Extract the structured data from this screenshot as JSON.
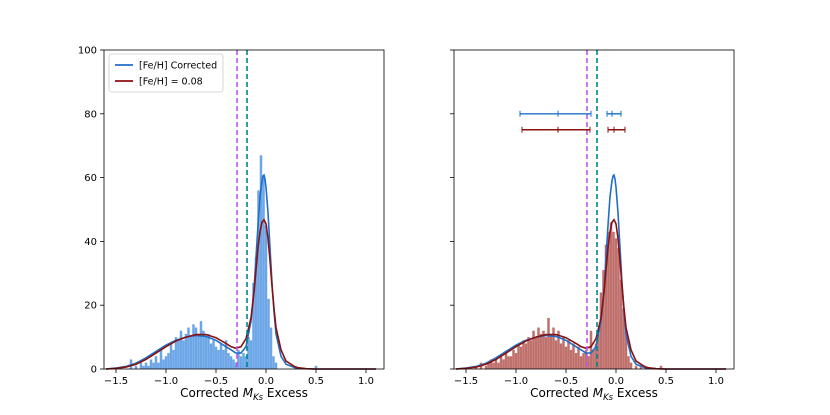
{
  "chart_data": [
    {
      "type": "histogram",
      "panel": "left",
      "xlim": [
        -1.62,
        1.18
      ],
      "ylim": [
        0,
        100
      ],
      "x_ticks": [
        -1.5,
        -1.0,
        -0.5,
        0.0,
        0.5,
        1.0
      ],
      "x_tick_labels": [
        "−1.5",
        "−1.0",
        "−0.5",
        "0.0",
        "0.5",
        "1.0"
      ],
      "y_ticks": [
        0,
        20,
        40,
        60,
        80,
        100
      ],
      "y_tick_labels": [
        "0",
        "20",
        "40",
        "60",
        "80",
        "100"
      ],
      "xlabel_prefix": "Corrected ",
      "xlabel_sub": "Ks",
      "xlabel_suffix": " Excess",
      "ylabel": "",
      "legend": {
        "placement": "upper-left",
        "entries": [
          {
            "label": "[Fe/H] Corrected",
            "color": "#1f6fc9"
          },
          {
            "label": "[Fe/H] = 0.08",
            "color": "#8b1010"
          }
        ]
      },
      "histogram_color": "#6ca6e6",
      "bin_width": 0.025,
      "bins": [
        [
          -1.35,
          3
        ],
        [
          -1.3,
          1
        ],
        [
          -1.25,
          2
        ],
        [
          -1.225,
          1
        ],
        [
          -1.2,
          2
        ],
        [
          -1.175,
          1
        ],
        [
          -1.15,
          3
        ],
        [
          -1.125,
          2
        ],
        [
          -1.1,
          4
        ],
        [
          -1.075,
          2
        ],
        [
          -1.05,
          6
        ],
        [
          -1.025,
          3
        ],
        [
          -1.0,
          4
        ],
        [
          -0.975,
          5
        ],
        [
          -0.95,
          8
        ],
        [
          -0.925,
          6
        ],
        [
          -0.9,
          10
        ],
        [
          -0.875,
          9
        ],
        [
          -0.85,
          12
        ],
        [
          -0.825,
          9
        ],
        [
          -0.8,
          11
        ],
        [
          -0.775,
          13
        ],
        [
          -0.75,
          10
        ],
        [
          -0.725,
          14
        ],
        [
          -0.7,
          13
        ],
        [
          -0.675,
          11
        ],
        [
          -0.65,
          15
        ],
        [
          -0.625,
          12
        ],
        [
          -0.6,
          10
        ],
        [
          -0.575,
          11
        ],
        [
          -0.55,
          8
        ],
        [
          -0.525,
          9
        ],
        [
          -0.5,
          7
        ],
        [
          -0.475,
          6
        ],
        [
          -0.45,
          8
        ],
        [
          -0.425,
          6
        ],
        [
          -0.4,
          9
        ],
        [
          -0.375,
          5
        ],
        [
          -0.35,
          4
        ],
        [
          -0.325,
          3
        ],
        [
          -0.3,
          2
        ],
        [
          -0.275,
          6
        ],
        [
          -0.25,
          4
        ],
        [
          -0.225,
          5
        ],
        [
          -0.2,
          4
        ],
        [
          -0.175,
          10
        ],
        [
          -0.15,
          9
        ],
        [
          -0.125,
          27
        ],
        [
          -0.1,
          35
        ],
        [
          -0.075,
          56
        ],
        [
          -0.05,
          67
        ],
        [
          -0.025,
          60
        ],
        [
          0.0,
          45
        ],
        [
          0.025,
          22
        ],
        [
          0.05,
          13
        ],
        [
          0.075,
          4
        ],
        [
          0.1,
          2
        ],
        [
          0.3,
          1
        ],
        [
          0.5,
          1
        ]
      ],
      "series": [
        {
          "name": "[Fe/H] Corrected",
          "color": "#1f6fc9",
          "x": [
            -1.6,
            -1.5,
            -1.4,
            -1.3,
            -1.2,
            -1.1,
            -1.0,
            -0.9,
            -0.8,
            -0.7,
            -0.6,
            -0.5,
            -0.4,
            -0.35,
            -0.3,
            -0.25,
            -0.2,
            -0.15,
            -0.12,
            -0.1,
            -0.08,
            -0.06,
            -0.04,
            -0.03,
            -0.02,
            -0.01,
            0.0,
            0.02,
            0.04,
            0.06,
            0.08,
            0.1,
            0.15,
            0.2,
            0.3,
            0.4,
            0.5,
            0.6,
            0.8,
            1.0,
            1.1
          ],
          "y": [
            0,
            0.3,
            0.8,
            1.8,
            3.5,
            5.5,
            7.5,
            9,
            10,
            10.5,
            10.2,
            9,
            7,
            6,
            5,
            5,
            7,
            15,
            25,
            35,
            45,
            54,
            59,
            60.5,
            60.8,
            59.5,
            57,
            49,
            38,
            27,
            18,
            11,
            4,
            1.5,
            0.3,
            0.1,
            0,
            0,
            0,
            0,
            0
          ]
        },
        {
          "name": "[Fe/H] = 0.08",
          "color": "#8b1010",
          "x": [
            -1.6,
            -1.5,
            -1.4,
            -1.3,
            -1.2,
            -1.1,
            -1.0,
            -0.9,
            -0.8,
            -0.7,
            -0.6,
            -0.5,
            -0.4,
            -0.35,
            -0.3,
            -0.25,
            -0.2,
            -0.15,
            -0.12,
            -0.1,
            -0.08,
            -0.06,
            -0.04,
            -0.02,
            0.0,
            0.02,
            0.04,
            0.06,
            0.08,
            0.1,
            0.15,
            0.2,
            0.3,
            0.4,
            0.5,
            0.6,
            0.8,
            1.0,
            1.1
          ],
          "y": [
            0,
            0.2,
            0.6,
            1.5,
            3,
            5,
            7,
            8.8,
            10,
            10.8,
            10.8,
            9.8,
            8,
            7,
            6.5,
            7,
            9.5,
            16,
            24,
            31,
            38,
            43,
            46,
            46.8,
            45.5,
            41,
            34,
            26,
            19,
            13,
            6,
            2.5,
            0.5,
            0.1,
            0,
            0,
            0,
            0,
            0
          ]
        }
      ],
      "vlines": [
        {
          "x": -0.29,
          "color": "#bf55ec",
          "style": "dashed"
        },
        {
          "x": -0.19,
          "color": "#00868b",
          "style": "dashed"
        }
      ]
    },
    {
      "type": "histogram",
      "panel": "right",
      "xlim": [
        -1.62,
        1.18
      ],
      "ylim": [
        0,
        100
      ],
      "x_ticks": [
        -1.5,
        -1.0,
        -0.5,
        0.0,
        0.5,
        1.0
      ],
      "x_tick_labels": [
        "−1.5",
        "−1.0",
        "−0.5",
        "0.0",
        "0.5",
        "1.0"
      ],
      "y_ticks": [
        0,
        20,
        40,
        60,
        80,
        100
      ],
      "xlabel_prefix": "Corrected ",
      "xlabel_sub": "Ks",
      "xlabel_suffix": " Excess",
      "ylabel": "",
      "histogram_color": "#c0706c",
      "bin_width": 0.025,
      "bins": [
        [
          -1.4,
          1
        ],
        [
          -1.35,
          2
        ],
        [
          -1.3,
          1
        ],
        [
          -1.275,
          2
        ],
        [
          -1.25,
          3
        ],
        [
          -1.225,
          2
        ],
        [
          -1.2,
          3
        ],
        [
          -1.175,
          2
        ],
        [
          -1.15,
          4
        ],
        [
          -1.125,
          3
        ],
        [
          -1.1,
          5
        ],
        [
          -1.075,
          4
        ],
        [
          -1.05,
          4
        ],
        [
          -1.025,
          6
        ],
        [
          -1.0,
          5
        ],
        [
          -0.975,
          8
        ],
        [
          -0.95,
          7
        ],
        [
          -0.925,
          9
        ],
        [
          -0.9,
          8
        ],
        [
          -0.875,
          10
        ],
        [
          -0.85,
          9
        ],
        [
          -0.825,
          12
        ],
        [
          -0.8,
          10
        ],
        [
          -0.775,
          13
        ],
        [
          -0.75,
          11
        ],
        [
          -0.725,
          12
        ],
        [
          -0.7,
          10
        ],
        [
          -0.675,
          16
        ],
        [
          -0.65,
          11
        ],
        [
          -0.625,
          13
        ],
        [
          -0.6,
          9
        ],
        [
          -0.575,
          12
        ],
        [
          -0.55,
          8
        ],
        [
          -0.525,
          10
        ],
        [
          -0.5,
          7
        ],
        [
          -0.475,
          9
        ],
        [
          -0.45,
          6
        ],
        [
          -0.425,
          8
        ],
        [
          -0.4,
          5
        ],
        [
          -0.375,
          7
        ],
        [
          -0.35,
          4
        ],
        [
          -0.325,
          5
        ],
        [
          -0.3,
          6
        ],
        [
          -0.275,
          4
        ],
        [
          -0.25,
          12
        ],
        [
          -0.225,
          6
        ],
        [
          -0.2,
          8
        ],
        [
          -0.175,
          11
        ],
        [
          -0.15,
          24
        ],
        [
          -0.125,
          31
        ],
        [
          -0.1,
          39
        ],
        [
          -0.075,
          43
        ],
        [
          -0.05,
          46
        ],
        [
          -0.025,
          43
        ],
        [
          0.0,
          41
        ],
        [
          0.025,
          38
        ],
        [
          0.05,
          28
        ],
        [
          0.075,
          19
        ],
        [
          0.1,
          12
        ],
        [
          0.125,
          4
        ],
        [
          0.15,
          2
        ],
        [
          0.2,
          1
        ],
        [
          0.25,
          1
        ],
        [
          0.3,
          1
        ],
        [
          0.45,
          1
        ]
      ],
      "series": [
        {
          "name": "[Fe/H] Corrected",
          "color": "#1f6fc9",
          "x": [
            -1.6,
            -1.5,
            -1.4,
            -1.3,
            -1.2,
            -1.1,
            -1.0,
            -0.9,
            -0.8,
            -0.7,
            -0.6,
            -0.5,
            -0.4,
            -0.35,
            -0.3,
            -0.25,
            -0.2,
            -0.15,
            -0.12,
            -0.1,
            -0.08,
            -0.06,
            -0.04,
            -0.03,
            -0.02,
            -0.01,
            0.0,
            0.02,
            0.04,
            0.06,
            0.08,
            0.1,
            0.15,
            0.2,
            0.3,
            0.4,
            0.5,
            0.6,
            0.8,
            1.0,
            1.1
          ],
          "y": [
            0,
            0.3,
            0.8,
            1.8,
            3.5,
            5.5,
            7.5,
            9,
            10,
            10.5,
            10.2,
            9,
            7,
            6,
            5,
            5,
            7,
            15,
            25,
            35,
            45,
            54,
            59,
            60.5,
            60.8,
            59.5,
            57,
            49,
            38,
            27,
            18,
            11,
            4,
            1.5,
            0.3,
            0.1,
            0,
            0,
            0,
            0,
            0
          ]
        },
        {
          "name": "[Fe/H] = 0.08",
          "color": "#8b1010",
          "x": [
            -1.6,
            -1.5,
            -1.4,
            -1.3,
            -1.2,
            -1.1,
            -1.0,
            -0.9,
            -0.8,
            -0.7,
            -0.6,
            -0.5,
            -0.4,
            -0.35,
            -0.3,
            -0.25,
            -0.2,
            -0.15,
            -0.12,
            -0.1,
            -0.08,
            -0.06,
            -0.04,
            -0.02,
            0.0,
            0.02,
            0.04,
            0.06,
            0.08,
            0.1,
            0.15,
            0.2,
            0.3,
            0.4,
            0.5,
            0.6,
            0.8,
            1.0,
            1.1
          ],
          "y": [
            0,
            0.2,
            0.6,
            1.5,
            3,
            5,
            7,
            8.8,
            10,
            10.8,
            10.8,
            9.8,
            8,
            7,
            6.5,
            7,
            9.5,
            16,
            24,
            31,
            38,
            43,
            46,
            46.8,
            45.5,
            41,
            34,
            26,
            19,
            13,
            6,
            2.5,
            0.5,
            0.1,
            0,
            0,
            0,
            0,
            0
          ]
        }
      ],
      "vlines": [
        {
          "x": -0.29,
          "color": "#bf55ec",
          "style": "dashed"
        },
        {
          "x": -0.19,
          "color": "#00868b",
          "style": "dashed"
        }
      ],
      "error_bars": [
        {
          "color": "#1f6fc9",
          "y": 80,
          "center": -0.58,
          "low": -0.96,
          "high": -0.25
        },
        {
          "color": "#1f6fc9",
          "y": 80,
          "center": -0.04,
          "low": -0.09,
          "high": 0.05
        },
        {
          "color": "#8b1010",
          "y": 75,
          "center": -0.58,
          "low": -0.94,
          "high": -0.26
        },
        {
          "color": "#8b1010",
          "y": 75,
          "center": -0.02,
          "low": -0.08,
          "high": 0.09
        }
      ]
    }
  ]
}
